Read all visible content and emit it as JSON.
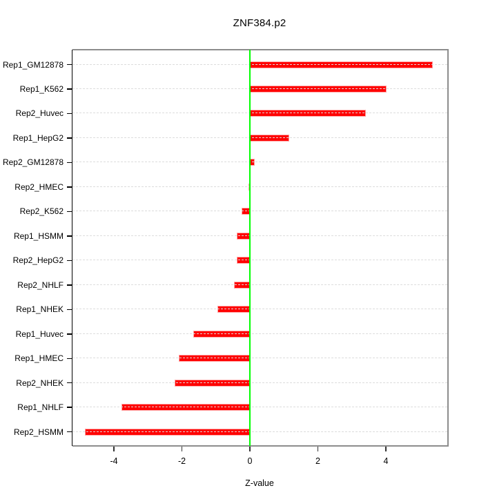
{
  "title": "ZNF384.p2",
  "xlabel": "Z-value",
  "chart_data": {
    "type": "bar",
    "orientation": "horizontal",
    "title": "ZNF384.p2",
    "xlabel": "Z-value",
    "ylabel": "",
    "categories": [
      "Rep1_GM12878",
      "Rep1_K562",
      "Rep2_Huvec",
      "Rep1_HepG2",
      "Rep2_GM12878",
      "Rep2_HMEC",
      "Rep2_K562",
      "Rep1_HSMM",
      "Rep2_HepG2",
      "Rep2_NHLF",
      "Rep1_NHEK",
      "Rep1_Huvec",
      "Rep1_HMEC",
      "Rep2_NHEK",
      "Rep1_NHLF",
      "Rep2_HSMM"
    ],
    "values": [
      5.39,
      4.03,
      3.41,
      1.16,
      0.14,
      -0.05,
      -0.24,
      -0.39,
      -0.38,
      -0.47,
      -0.95,
      -1.66,
      -2.1,
      -2.22,
      -3.78,
      -4.85
    ],
    "x_ticks": [
      -4,
      -2,
      0,
      2,
      4
    ],
    "xlim": [
      -5.25,
      5.8
    ],
    "grid": "horizontal-dashed-per-category",
    "zero_reference_line": 0,
    "legend": null,
    "colors": {
      "bar": "#FF0000",
      "bar_border": "#FFA3A3",
      "zero_line": "#00FF00",
      "grid": "#DCDCDC",
      "y_axis": "#000000",
      "box": "#8C8C8C"
    }
  }
}
